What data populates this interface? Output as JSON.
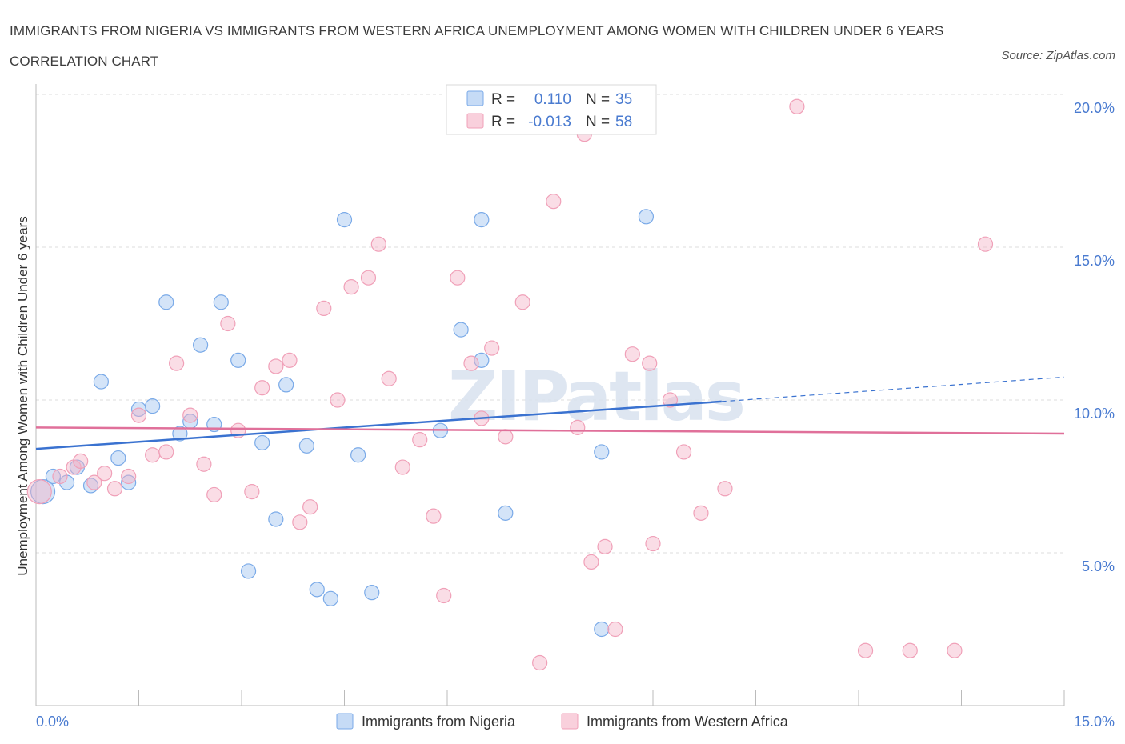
{
  "title": "IMMIGRANTS FROM NIGERIA VS IMMIGRANTS FROM WESTERN AFRICA UNEMPLOYMENT AMONG WOMEN WITH CHILDREN UNDER 6 YEARS CORRELATION CHART",
  "source": "Source: ZipAtlas.com",
  "watermark": "ZIPatlas",
  "legend": {
    "rows": [
      {
        "r_label": "R =",
        "r_value": "0.110",
        "n_label": "N =",
        "n_value": "35",
        "color": "#7aaae8"
      },
      {
        "r_label": "R =",
        "r_value": "-0.013",
        "n_label": "N =",
        "n_value": "58",
        "color": "#f0a0b8"
      }
    ]
  },
  "bottom_legend": [
    {
      "label": "Immigrants from Nigeria",
      "color": "#7aaae8"
    },
    {
      "label": "Immigrants from Western Africa",
      "color": "#f0a0b8"
    }
  ],
  "chart_data": {
    "type": "scatter",
    "ylabel": "Unemployment Among Women with Children Under 6 years",
    "xlabel": "",
    "xlim": [
      0,
      15
    ],
    "ylim": [
      0,
      20
    ],
    "x_tick_labels": [
      "0.0%",
      "15.0%"
    ],
    "y_ticks": [
      {
        "value": 5,
        "label": "5.0%"
      },
      {
        "value": 10,
        "label": "10.0%"
      },
      {
        "value": 15,
        "label": "15.0%"
      },
      {
        "value": 20,
        "label": "20.0%"
      }
    ],
    "grid": true,
    "series": [
      {
        "name": "Immigrants from Nigeria",
        "color": "#7aaae8",
        "trend": {
          "x0": 0,
          "y0": 8.4,
          "x1": 10.0,
          "y1": 9.95,
          "dash_to_x": 15,
          "dash_to_y": 10.75
        },
        "points": [
          [
            0.1,
            7.0
          ],
          [
            0.25,
            7.5
          ],
          [
            0.45,
            7.3
          ],
          [
            0.6,
            7.8
          ],
          [
            0.8,
            7.2
          ],
          [
            0.95,
            10.6
          ],
          [
            1.2,
            8.1
          ],
          [
            1.35,
            7.3
          ],
          [
            1.5,
            9.7
          ],
          [
            1.7,
            9.8
          ],
          [
            1.9,
            13.2
          ],
          [
            2.1,
            8.9
          ],
          [
            2.25,
            9.3
          ],
          [
            2.4,
            11.8
          ],
          [
            2.6,
            9.2
          ],
          [
            2.7,
            13.2
          ],
          [
            2.95,
            11.3
          ],
          [
            3.1,
            4.4
          ],
          [
            3.3,
            8.6
          ],
          [
            3.5,
            6.1
          ],
          [
            3.65,
            10.5
          ],
          [
            3.95,
            8.5
          ],
          [
            4.1,
            3.8
          ],
          [
            4.3,
            3.5
          ],
          [
            4.5,
            15.9
          ],
          [
            4.7,
            8.2
          ],
          [
            4.9,
            3.7
          ],
          [
            5.9,
            9.0
          ],
          [
            6.2,
            12.3
          ],
          [
            6.5,
            11.3
          ],
          [
            6.5,
            15.9
          ],
          [
            6.85,
            6.3
          ],
          [
            8.25,
            8.3
          ],
          [
            8.25,
            2.5
          ],
          [
            8.9,
            16.0
          ]
        ]
      },
      {
        "name": "Immigrants from Western Africa",
        "color": "#f0a0b8",
        "trend": {
          "x0": 0,
          "y0": 9.1,
          "x1": 15,
          "y1": 8.9
        },
        "points": [
          [
            0.05,
            7.0
          ],
          [
            0.35,
            7.5
          ],
          [
            0.55,
            7.8
          ],
          [
            0.65,
            8.0
          ],
          [
            0.85,
            7.3
          ],
          [
            1.0,
            7.6
          ],
          [
            1.15,
            7.1
          ],
          [
            1.35,
            7.5
          ],
          [
            1.5,
            9.5
          ],
          [
            1.7,
            8.2
          ],
          [
            1.9,
            8.3
          ],
          [
            2.05,
            11.2
          ],
          [
            2.25,
            9.5
          ],
          [
            2.45,
            7.9
          ],
          [
            2.6,
            6.9
          ],
          [
            2.8,
            12.5
          ],
          [
            2.95,
            9.0
          ],
          [
            3.15,
            7.0
          ],
          [
            3.3,
            10.4
          ],
          [
            3.5,
            11.1
          ],
          [
            3.7,
            11.3
          ],
          [
            3.85,
            6.0
          ],
          [
            4.0,
            6.5
          ],
          [
            4.2,
            13.0
          ],
          [
            4.4,
            10.0
          ],
          [
            4.6,
            13.7
          ],
          [
            4.85,
            14.0
          ],
          [
            5.0,
            15.1
          ],
          [
            5.15,
            10.7
          ],
          [
            5.35,
            7.8
          ],
          [
            5.6,
            8.7
          ],
          [
            5.8,
            6.2
          ],
          [
            5.95,
            3.6
          ],
          [
            6.15,
            14.0
          ],
          [
            6.35,
            11.2
          ],
          [
            6.5,
            9.4
          ],
          [
            6.65,
            11.7
          ],
          [
            6.85,
            8.8
          ],
          [
            7.1,
            13.2
          ],
          [
            7.35,
            1.4
          ],
          [
            7.55,
            16.5
          ],
          [
            7.9,
            9.1
          ],
          [
            8.0,
            18.7
          ],
          [
            8.1,
            4.7
          ],
          [
            8.3,
            5.2
          ],
          [
            8.45,
            2.5
          ],
          [
            8.7,
            11.5
          ],
          [
            8.95,
            11.2
          ],
          [
            9.0,
            5.3
          ],
          [
            9.25,
            10.0
          ],
          [
            9.45,
            8.3
          ],
          [
            9.7,
            6.3
          ],
          [
            10.05,
            7.1
          ],
          [
            11.1,
            19.6
          ],
          [
            12.1,
            1.8
          ],
          [
            12.75,
            1.8
          ],
          [
            13.4,
            1.8
          ],
          [
            13.85,
            15.1
          ]
        ]
      }
    ]
  }
}
